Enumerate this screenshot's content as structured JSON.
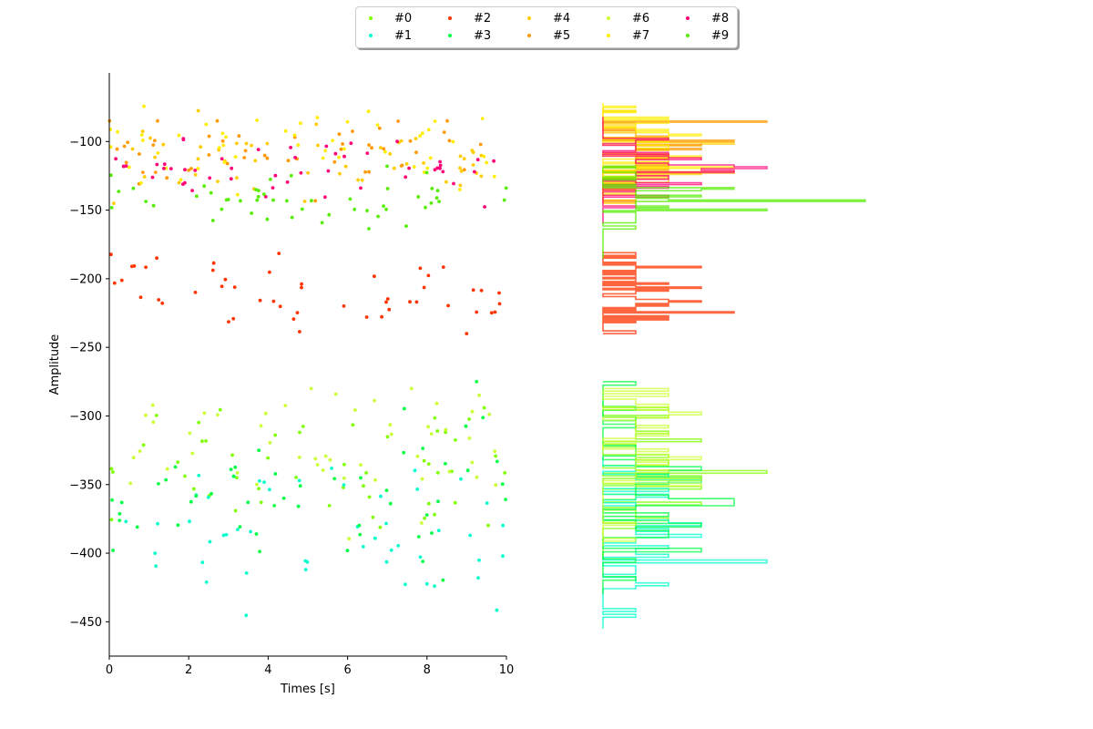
{
  "chart_data": {
    "type": "scatter",
    "title": "",
    "xlabel": "Times [s]",
    "ylabel": "Amplitude",
    "xlim": [
      0,
      10
    ],
    "ylim": [
      -475,
      -50
    ],
    "xticks": [
      0,
      2,
      4,
      6,
      8,
      10
    ],
    "yticks": [
      -450,
      -400,
      -350,
      -300,
      -250,
      -200,
      -150,
      -100
    ],
    "grid": false,
    "legend_position": "top-center",
    "legend_columns": 5,
    "marginal": "histogram-right",
    "series": [
      {
        "name": "#0",
        "color": "#7fff00",
        "y_center": -330,
        "y_spread": 28,
        "y_min": -405,
        "y_max": -290
      },
      {
        "name": "#1",
        "color": "#00ffcc",
        "y_center": -385,
        "y_spread": 25,
        "y_min": -455,
        "y_max": -330
      },
      {
        "name": "#2",
        "color": "#ff3300",
        "y_center": -212,
        "y_spread": 14,
        "y_min": -240,
        "y_max": -180
      },
      {
        "name": "#3",
        "color": "#00ff44",
        "y_center": -355,
        "y_spread": 28,
        "y_min": -430,
        "y_max": -275
      },
      {
        "name": "#4",
        "color": "#ffcc00",
        "y_center": -112,
        "y_spread": 13,
        "y_min": -145,
        "y_max": -75
      },
      {
        "name": "#5",
        "color": "#ff9900",
        "y_center": -110,
        "y_spread": 13,
        "y_min": -145,
        "y_max": -85
      },
      {
        "name": "#6",
        "color": "#ccff33",
        "y_center": -320,
        "y_spread": 24,
        "y_min": -395,
        "y_max": -280
      },
      {
        "name": "#7",
        "color": "#ffee00",
        "y_center": -105,
        "y_spread": 14,
        "y_min": -140,
        "y_max": -72
      },
      {
        "name": "#8",
        "color": "#ff0077",
        "y_center": -122,
        "y_spread": 10,
        "y_min": -160,
        "y_max": -82
      },
      {
        "name": "#9",
        "color": "#55ee00",
        "y_center": -142,
        "y_spread": 14,
        "y_min": -185,
        "y_max": -118
      }
    ]
  }
}
